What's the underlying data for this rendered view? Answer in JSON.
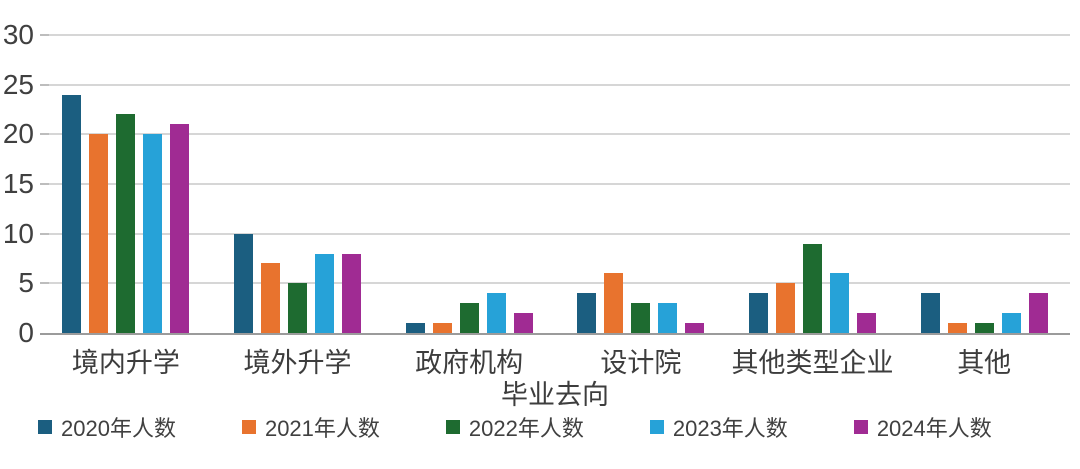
{
  "chart_data": {
    "type": "bar",
    "title": "",
    "xlabel": "毕业去向",
    "ylabel": "",
    "categories": [
      "境内升学",
      "境外升学",
      "政府机构",
      "设计院",
      "其他类型企业",
      "其他"
    ],
    "series": [
      {
        "name": "2020年人数",
        "color": "#1b5e80",
        "values": [
          24,
          10,
          1,
          4,
          4,
          4
        ]
      },
      {
        "name": "2021年人数",
        "color": "#e8732e",
        "values": [
          20,
          7,
          1,
          6,
          5,
          1
        ]
      },
      {
        "name": "2022年人数",
        "color": "#1e6b30",
        "values": [
          22,
          5,
          3,
          3,
          9,
          1
        ]
      },
      {
        "name": "2023年人数",
        "color": "#26a2d8",
        "values": [
          20,
          8,
          4,
          3,
          6,
          2
        ]
      },
      {
        "name": "2024年人数",
        "color": "#a02b93",
        "values": [
          21,
          8,
          2,
          1,
          2,
          4
        ]
      }
    ],
    "ylim": [
      0,
      30
    ],
    "yticks": [
      0,
      5,
      10,
      15,
      20,
      25,
      30
    ],
    "grid": true,
    "legend_position": "bottom",
    "colors": {
      "gridline": "#d6d6d6",
      "axis_line": "#9b9b9b",
      "tick_label": "#404040",
      "background": "#ffffff"
    }
  }
}
